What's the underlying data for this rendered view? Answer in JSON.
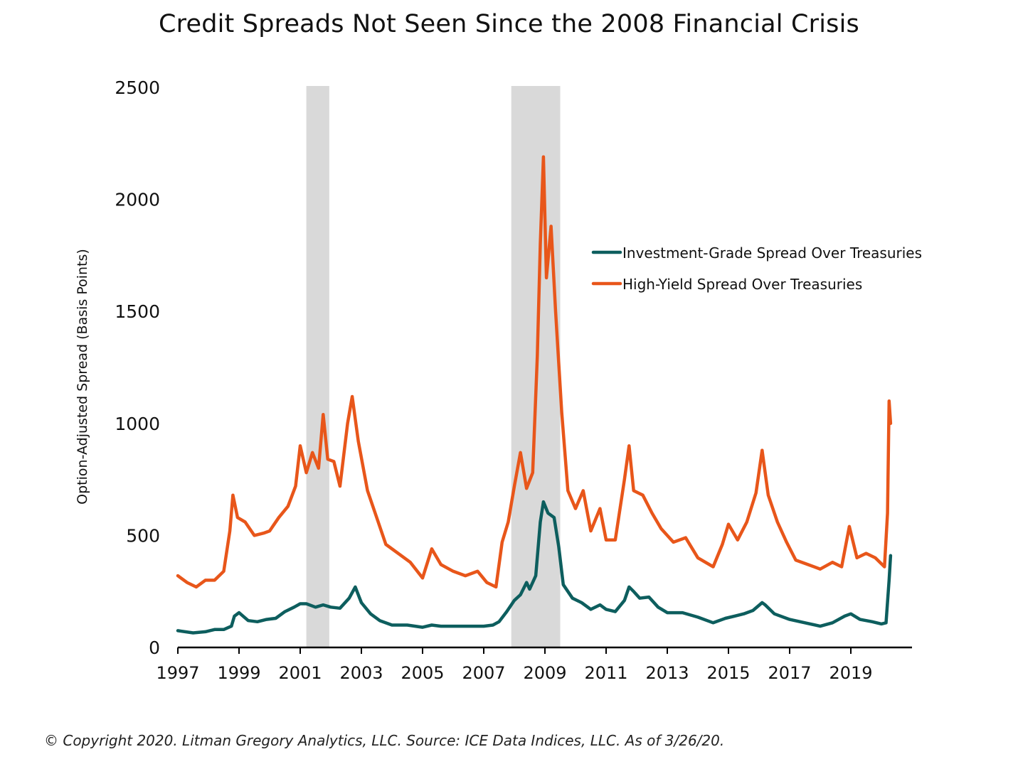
{
  "chart_data": {
    "type": "line",
    "title": "Credit Spreads Not Seen Since the 2008 Financial Crisis",
    "ylabel": "Option-Adjusted Spread (Basis Points)",
    "xlabel": "",
    "ylim": [
      0,
      2500
    ],
    "xlim": [
      1997,
      2021
    ],
    "y_ticks": [
      "0",
      "500",
      "1000",
      "1500",
      "2000",
      "2500"
    ],
    "x_ticks": [
      "1997",
      "1999",
      "2001",
      "2003",
      "2005",
      "2007",
      "2009",
      "2011",
      "2013",
      "2015",
      "2017",
      "2019"
    ],
    "grid": false,
    "legend_position": "right",
    "shaded_periods": [
      {
        "start": 2001.2,
        "end": 2001.95
      },
      {
        "start": 2007.9,
        "end": 2009.5
      }
    ],
    "series": [
      {
        "name": "Investment-Grade Spread Over Treasuries",
        "color": "#0d5e5e",
        "points": [
          [
            1997.0,
            75
          ],
          [
            1997.5,
            65
          ],
          [
            1997.9,
            70
          ],
          [
            1998.2,
            80
          ],
          [
            1998.5,
            80
          ],
          [
            1998.75,
            95
          ],
          [
            1998.85,
            140
          ],
          [
            1999.0,
            155
          ],
          [
            1999.3,
            120
          ],
          [
            1999.6,
            115
          ],
          [
            1999.9,
            125
          ],
          [
            2000.2,
            130
          ],
          [
            2000.5,
            160
          ],
          [
            2000.8,
            180
          ],
          [
            2001.0,
            195
          ],
          [
            2001.2,
            195
          ],
          [
            2001.5,
            180
          ],
          [
            2001.75,
            190
          ],
          [
            2002.0,
            180
          ],
          [
            2002.3,
            175
          ],
          [
            2002.6,
            220
          ],
          [
            2002.8,
            270
          ],
          [
            2003.0,
            200
          ],
          [
            2003.3,
            150
          ],
          [
            2003.6,
            120
          ],
          [
            2004.0,
            100
          ],
          [
            2004.5,
            100
          ],
          [
            2005.0,
            90
          ],
          [
            2005.3,
            100
          ],
          [
            2005.6,
            95
          ],
          [
            2006.0,
            95
          ],
          [
            2006.5,
            95
          ],
          [
            2007.0,
            95
          ],
          [
            2007.3,
            100
          ],
          [
            2007.5,
            115
          ],
          [
            2007.75,
            160
          ],
          [
            2008.0,
            210
          ],
          [
            2008.2,
            235
          ],
          [
            2008.4,
            290
          ],
          [
            2008.5,
            260
          ],
          [
            2008.7,
            320
          ],
          [
            2008.85,
            560
          ],
          [
            2008.95,
            650
          ],
          [
            2009.1,
            600
          ],
          [
            2009.3,
            580
          ],
          [
            2009.45,
            450
          ],
          [
            2009.6,
            280
          ],
          [
            2009.9,
            220
          ],
          [
            2010.2,
            200
          ],
          [
            2010.5,
            170
          ],
          [
            2010.8,
            190
          ],
          [
            2011.0,
            170
          ],
          [
            2011.3,
            160
          ],
          [
            2011.6,
            210
          ],
          [
            2011.75,
            270
          ],
          [
            2011.9,
            250
          ],
          [
            2012.1,
            220
          ],
          [
            2012.4,
            225
          ],
          [
            2012.7,
            180
          ],
          [
            2013.0,
            155
          ],
          [
            2013.5,
            155
          ],
          [
            2014.0,
            135
          ],
          [
            2014.5,
            110
          ],
          [
            2014.9,
            130
          ],
          [
            2015.2,
            140
          ],
          [
            2015.5,
            150
          ],
          [
            2015.8,
            165
          ],
          [
            2016.1,
            200
          ],
          [
            2016.2,
            190
          ],
          [
            2016.5,
            150
          ],
          [
            2017.0,
            125
          ],
          [
            2017.5,
            110
          ],
          [
            2018.0,
            95
          ],
          [
            2018.4,
            110
          ],
          [
            2018.8,
            140
          ],
          [
            2019.0,
            150
          ],
          [
            2019.3,
            125
          ],
          [
            2019.7,
            115
          ],
          [
            2020.0,
            105
          ],
          [
            2020.15,
            110
          ],
          [
            2020.25,
            300
          ],
          [
            2020.3,
            410
          ]
        ]
      },
      {
        "name": "High-Yield Spread Over Treasuries",
        "color": "#e8561a",
        "points": [
          [
            1997.0,
            320
          ],
          [
            1997.3,
            290
          ],
          [
            1997.6,
            270
          ],
          [
            1997.9,
            300
          ],
          [
            1998.2,
            300
          ],
          [
            1998.5,
            340
          ],
          [
            1998.7,
            520
          ],
          [
            1998.8,
            680
          ],
          [
            1998.95,
            580
          ],
          [
            1999.2,
            560
          ],
          [
            1999.5,
            500
          ],
          [
            1999.8,
            510
          ],
          [
            2000.0,
            520
          ],
          [
            2000.3,
            580
          ],
          [
            2000.6,
            630
          ],
          [
            2000.85,
            720
          ],
          [
            2001.0,
            900
          ],
          [
            2001.2,
            780
          ],
          [
            2001.4,
            870
          ],
          [
            2001.6,
            800
          ],
          [
            2001.75,
            1040
          ],
          [
            2001.9,
            840
          ],
          [
            2002.1,
            830
          ],
          [
            2002.3,
            720
          ],
          [
            2002.55,
            1000
          ],
          [
            2002.7,
            1120
          ],
          [
            2002.9,
            920
          ],
          [
            2003.2,
            700
          ],
          [
            2003.5,
            580
          ],
          [
            2003.8,
            460
          ],
          [
            2004.2,
            420
          ],
          [
            2004.6,
            380
          ],
          [
            2005.0,
            310
          ],
          [
            2005.3,
            440
          ],
          [
            2005.6,
            370
          ],
          [
            2006.0,
            340
          ],
          [
            2006.4,
            320
          ],
          [
            2006.8,
            340
          ],
          [
            2007.1,
            290
          ],
          [
            2007.4,
            270
          ],
          [
            2007.6,
            470
          ],
          [
            2007.8,
            560
          ],
          [
            2008.0,
            720
          ],
          [
            2008.2,
            870
          ],
          [
            2008.4,
            710
          ],
          [
            2008.6,
            780
          ],
          [
            2008.75,
            1300
          ],
          [
            2008.85,
            1800
          ],
          [
            2008.95,
            2190
          ],
          [
            2009.05,
            1650
          ],
          [
            2009.2,
            1880
          ],
          [
            2009.35,
            1500
          ],
          [
            2009.55,
            1050
          ],
          [
            2009.75,
            700
          ],
          [
            2010.0,
            620
          ],
          [
            2010.25,
            700
          ],
          [
            2010.5,
            520
          ],
          [
            2010.8,
            620
          ],
          [
            2011.0,
            480
          ],
          [
            2011.3,
            480
          ],
          [
            2011.6,
            750
          ],
          [
            2011.75,
            900
          ],
          [
            2011.9,
            700
          ],
          [
            2012.2,
            680
          ],
          [
            2012.5,
            600
          ],
          [
            2012.8,
            530
          ],
          [
            2013.2,
            470
          ],
          [
            2013.6,
            490
          ],
          [
            2014.0,
            400
          ],
          [
            2014.5,
            360
          ],
          [
            2014.8,
            460
          ],
          [
            2015.0,
            550
          ],
          [
            2015.3,
            480
          ],
          [
            2015.6,
            560
          ],
          [
            2015.9,
            690
          ],
          [
            2016.1,
            880
          ],
          [
            2016.3,
            680
          ],
          [
            2016.6,
            560
          ],
          [
            2016.9,
            470
          ],
          [
            2017.2,
            390
          ],
          [
            2017.6,
            370
          ],
          [
            2018.0,
            350
          ],
          [
            2018.4,
            380
          ],
          [
            2018.7,
            360
          ],
          [
            2018.95,
            540
          ],
          [
            2019.2,
            400
          ],
          [
            2019.5,
            420
          ],
          [
            2019.8,
            400
          ],
          [
            2020.1,
            360
          ],
          [
            2020.2,
            600
          ],
          [
            2020.25,
            1100
          ],
          [
            2020.3,
            1000
          ]
        ]
      }
    ]
  },
  "footer": "© Copyright 2020. Litman Gregory Analytics, LLC. Source: ICE Data Indices, LLC. As of 3/26/20."
}
